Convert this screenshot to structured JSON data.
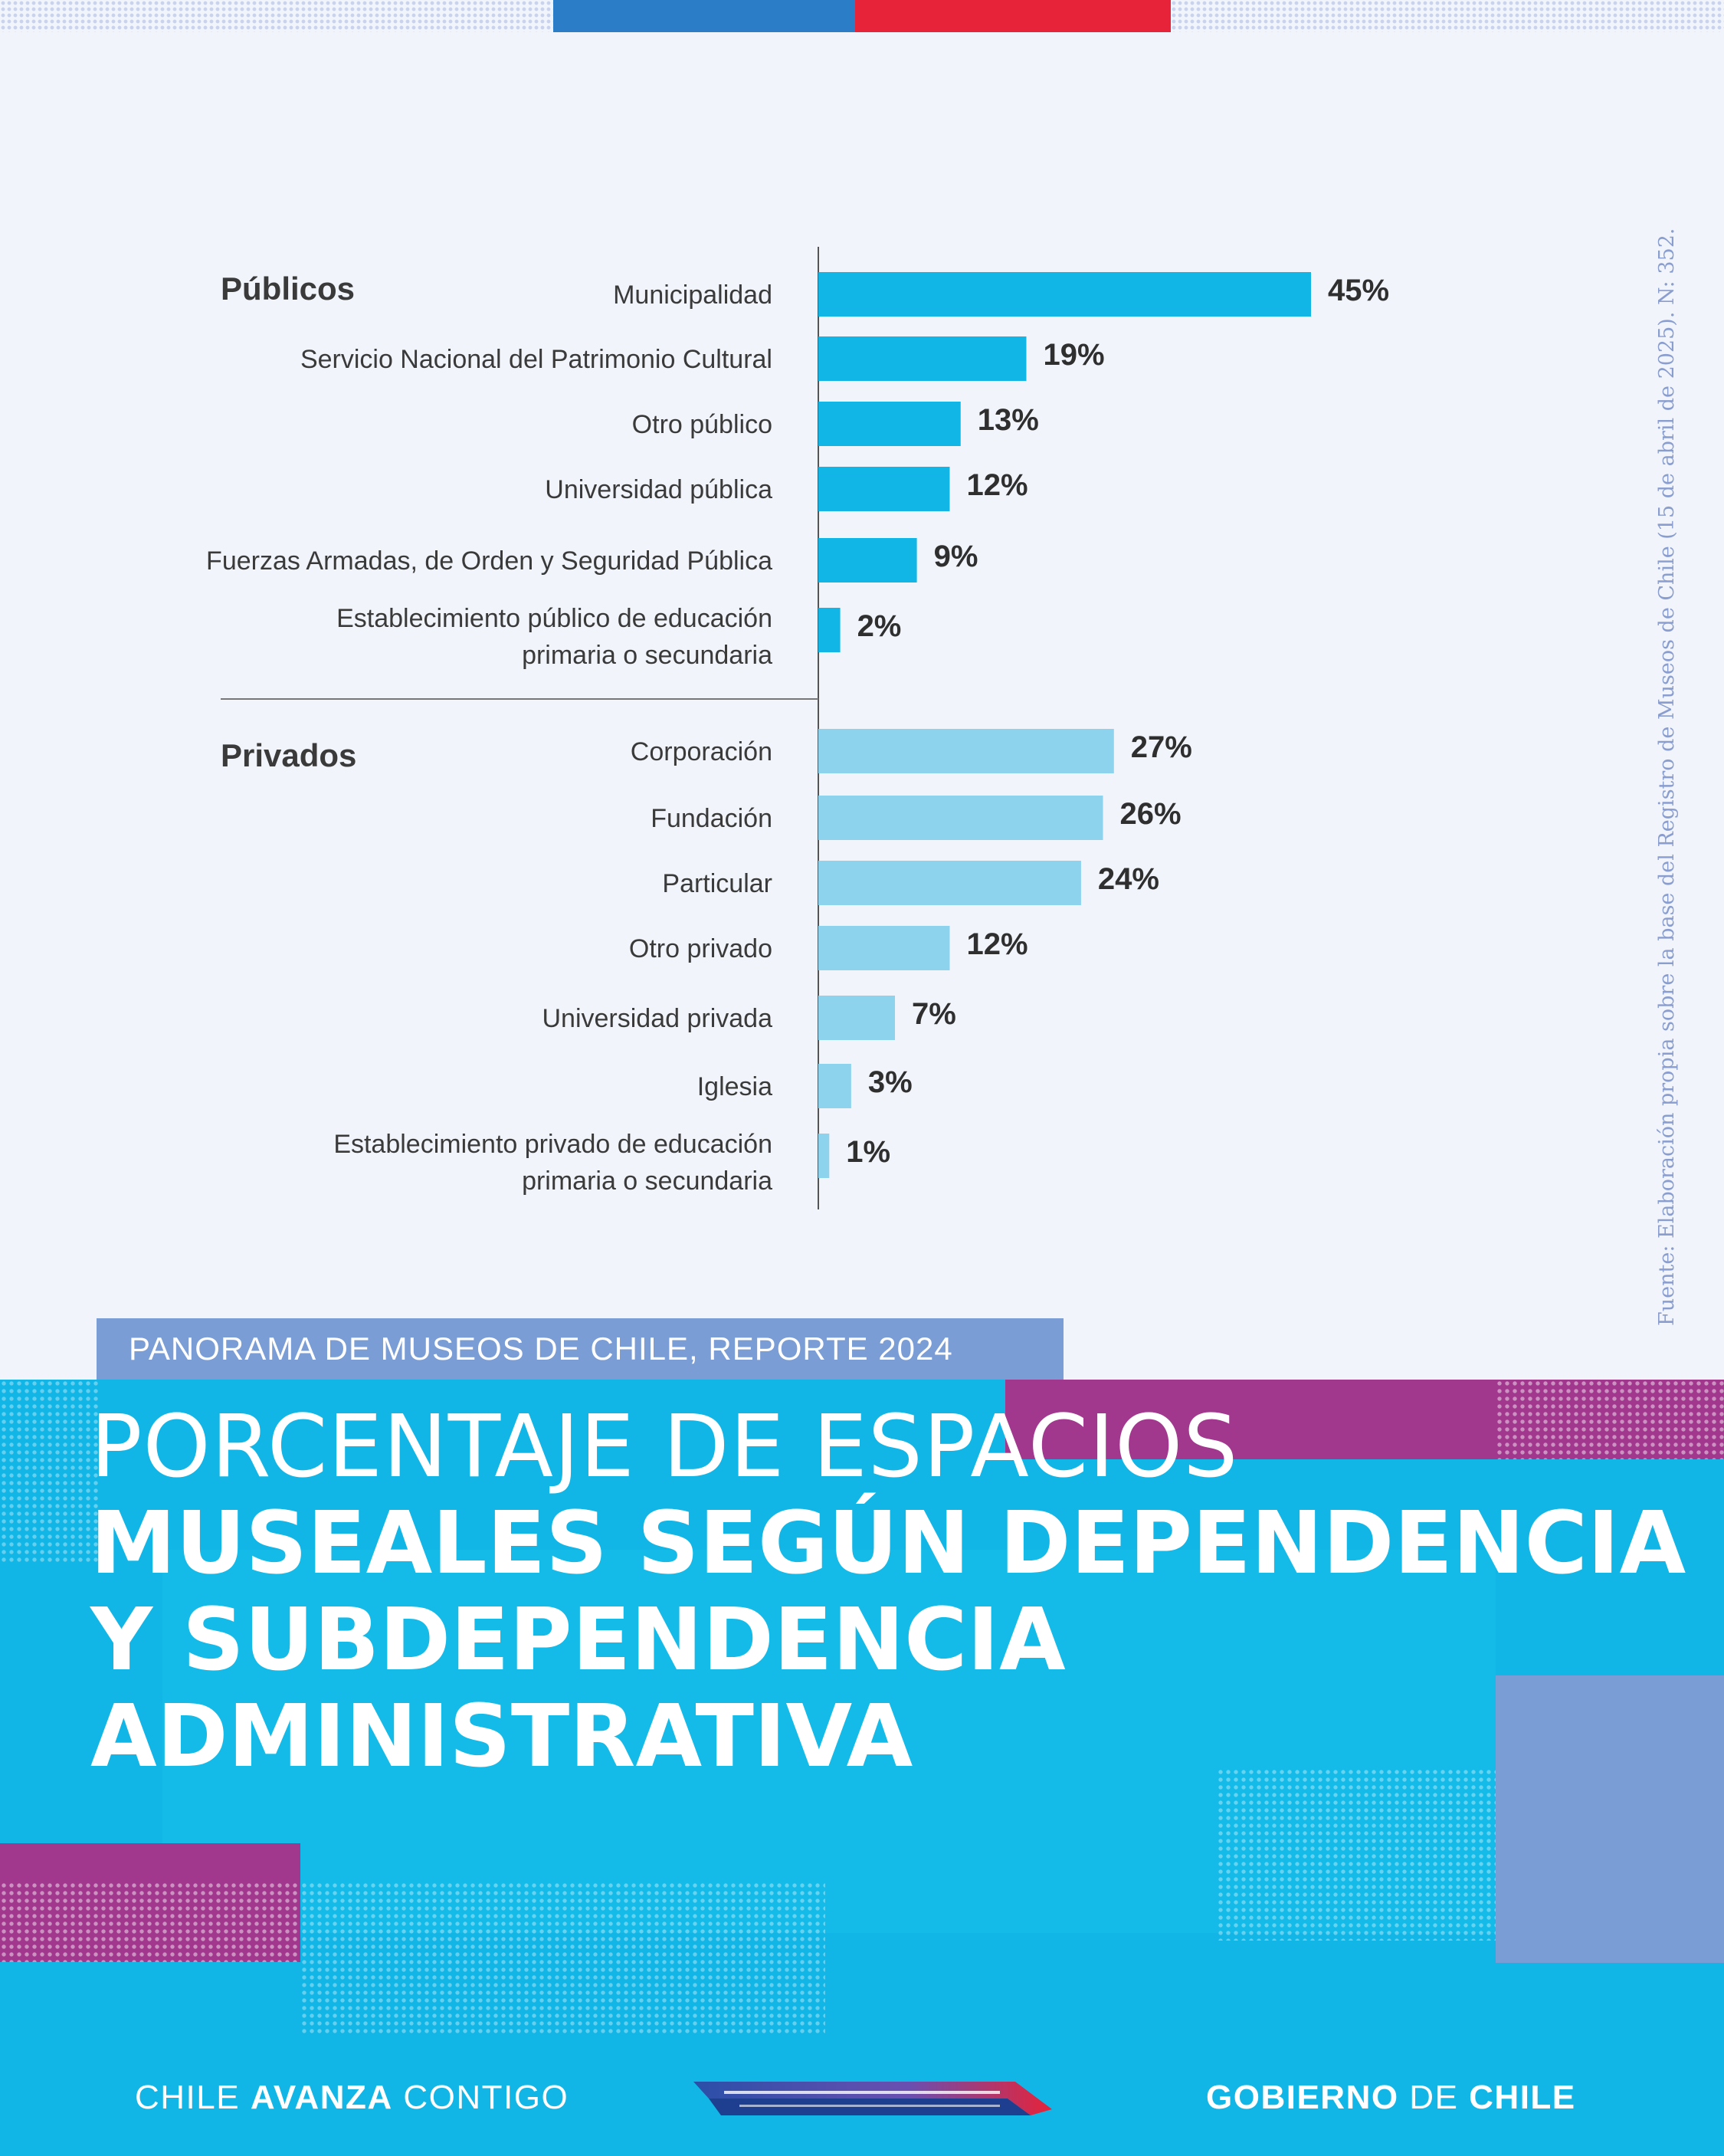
{
  "colors": {
    "background": "#f1f5fb",
    "publicos_bar": "#12b6e6",
    "privados_bar": "#8dd3ee",
    "brand_blue": "#2a7dc6",
    "brand_red": "#e62339",
    "magenta": "#a2388e",
    "tag_blue": "#7a9dd6"
  },
  "chart_data": {
    "type": "bar",
    "orientation": "horizontal",
    "value_unit": "%",
    "groups": [
      {
        "name": "Públicos",
        "items": [
          {
            "label_lines": [
              "Municipalidad"
            ],
            "value": 45,
            "display": "45%"
          },
          {
            "label_lines": [
              "Servicio Nacional del Patrimonio Cultural"
            ],
            "value": 19,
            "display": "19%"
          },
          {
            "label_lines": [
              "Otro público"
            ],
            "value": 13,
            "display": "13%"
          },
          {
            "label_lines": [
              "Universidad pública"
            ],
            "value": 12,
            "display": "12%"
          },
          {
            "label_lines": [
              "Fuerzas Armadas, de Orden y  Seguridad Pública"
            ],
            "value": 9,
            "display": "9%"
          },
          {
            "label_lines": [
              "Establecimiento público de educación",
              "primaria o secundaria"
            ],
            "value": 2,
            "display": "2%"
          }
        ]
      },
      {
        "name": "Privados",
        "items": [
          {
            "label_lines": [
              "Corporación"
            ],
            "value": 27,
            "display": "27%"
          },
          {
            "label_lines": [
              "Fundación"
            ],
            "value": 26,
            "display": "26%"
          },
          {
            "label_lines": [
              "Particular"
            ],
            "value": 24,
            "display": "24%"
          },
          {
            "label_lines": [
              "Otro privado"
            ],
            "value": 12,
            "display": "12%"
          },
          {
            "label_lines": [
              "Universidad privada"
            ],
            "value": 7,
            "display": "7%"
          },
          {
            "label_lines": [
              "Iglesia"
            ],
            "value": 3,
            "display": "3%"
          },
          {
            "label_lines": [
              "Establecimiento privado de educación",
              "primaria o secundaria"
            ],
            "value": 1,
            "display": "1%"
          }
        ]
      }
    ],
    "source": "Fuente: Elaboración propia sobre la base del Registro de Museos de Chile (15 de abril de 2025). N: 352."
  },
  "header": {
    "report_tag": "PANORAMA DE MUSEOS DE CHILE, REPORTE 2024",
    "title_line1": "PORCENTAJE DE ESPACIOS",
    "title_line2": "MUSEALES SEGÚN DEPENDENCIA",
    "title_line3": "Y SUBDEPENDENCIA",
    "title_line4": "ADMINISTRATIVA"
  },
  "footer": {
    "left_part1": "CHILE ",
    "left_part2": "AVANZA",
    "left_part3": " CONTIGO",
    "right_part1": "GOBIERNO",
    "right_part2": " DE ",
    "right_part3": "CHILE"
  }
}
